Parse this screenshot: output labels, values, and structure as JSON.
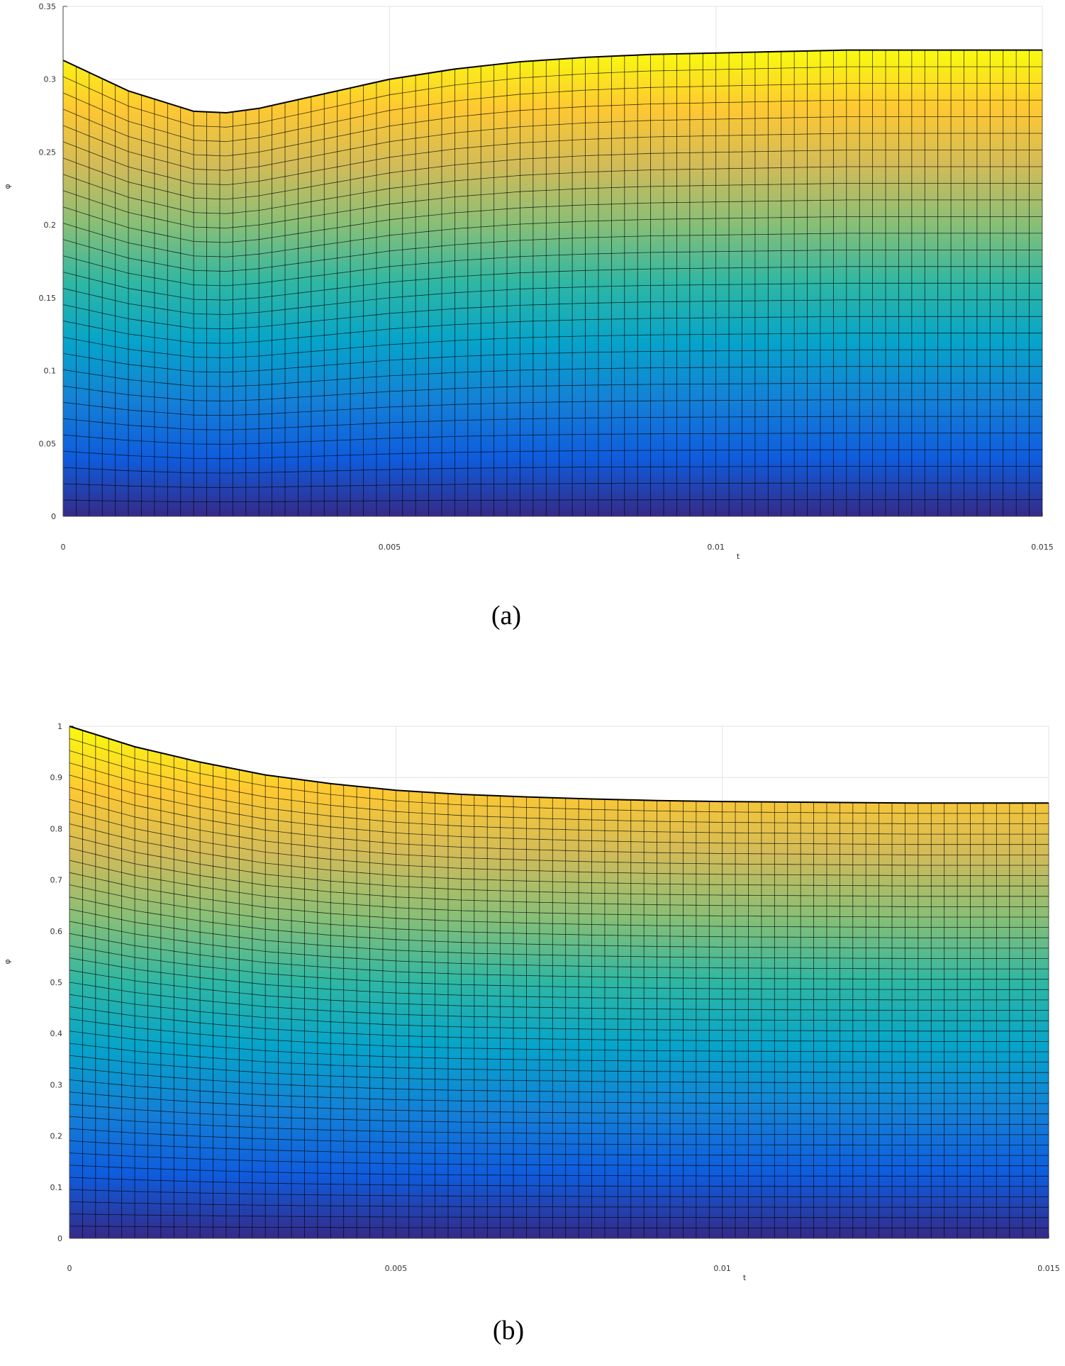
{
  "chart_data": [
    {
      "type": "surface",
      "caption": "(a)",
      "x_label": "t",
      "y_label": "φ",
      "x": [
        0,
        0.001,
        0.002,
        0.0025,
        0.003,
        0.004,
        0.005,
        0.006,
        0.007,
        0.008,
        0.009,
        0.01,
        0.011,
        0.012,
        0.013,
        0.014,
        0.015
      ],
      "values": [
        0.313,
        0.292,
        0.278,
        0.277,
        0.28,
        0.29,
        0.3,
        0.307,
        0.312,
        0.315,
        0.317,
        0.318,
        0.319,
        0.32,
        0.32,
        0.32,
        0.32
      ],
      "xlim": [
        0,
        0.015
      ],
      "xticks": [
        0,
        0.005,
        0.01,
        0.015
      ],
      "ylim": [
        0,
        0.35
      ],
      "yticks": [
        0,
        0.05,
        0.1,
        0.15,
        0.2,
        0.25,
        0.3,
        0.35
      ],
      "grid": true,
      "edge_color": "#000000",
      "colormap": [
        "#352a87",
        "#0f5cdd",
        "#1481d6",
        "#06a4ca",
        "#2eb7a4",
        "#87bf77",
        "#d1bb59",
        "#fec832",
        "#f9fb0e"
      ]
    },
    {
      "type": "surface",
      "caption": "(b)",
      "x_label": "t",
      "y_label": "φ",
      "x": [
        0,
        0.001,
        0.002,
        0.003,
        0.004,
        0.005,
        0.006,
        0.007,
        0.008,
        0.009,
        0.01,
        0.011,
        0.012,
        0.013,
        0.014,
        0.015
      ],
      "values": [
        1,
        0.96,
        0.93,
        0.905,
        0.888,
        0.875,
        0.867,
        0.862,
        0.858,
        0.855,
        0.853,
        0.852,
        0.851,
        0.85,
        0.85,
        0.85
      ],
      "xlim": [
        0,
        0.015
      ],
      "xticks": [
        0,
        0.005,
        0.01,
        0.015
      ],
      "ylim": [
        0,
        1
      ],
      "yticks": [
        0,
        0.1,
        0.2,
        0.3,
        0.4,
        0.5,
        0.6,
        0.7,
        0.8,
        0.9,
        1
      ],
      "grid": true,
      "edge_color": "#000000",
      "colormap": [
        "#352a87",
        "#0f5cdd",
        "#1481d6",
        "#06a4ca",
        "#2eb7a4",
        "#87bf77",
        "#d1bb59",
        "#fec832",
        "#f9fb0e"
      ]
    }
  ]
}
